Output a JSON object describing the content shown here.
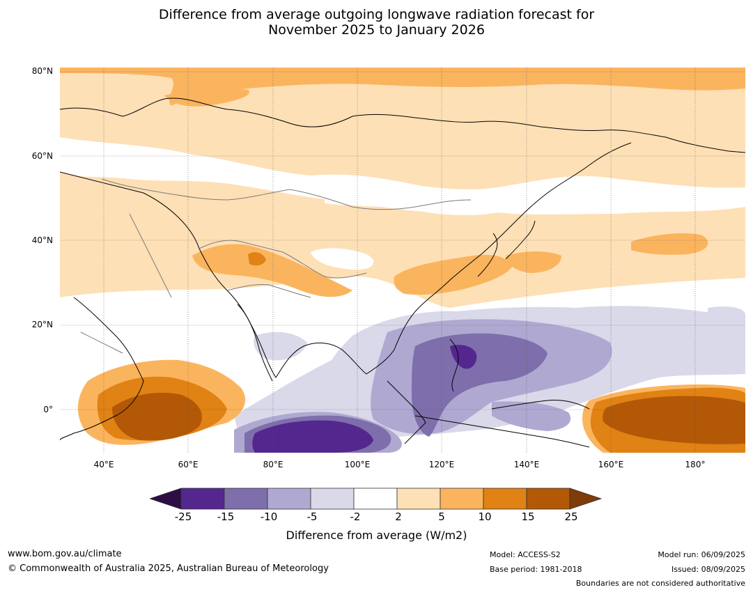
{
  "title": {
    "line1": "Difference from average outgoing longwave radiation forecast for",
    "line2": "November 2025 to January 2026"
  },
  "map": {
    "lat_labels": [
      "80°N",
      "60°N",
      "40°N",
      "20°N",
      "0°"
    ],
    "lon_labels": [
      "40°E",
      "60°E",
      "80°E",
      "100°E",
      "120°E",
      "140°E",
      "160°E",
      "180°"
    ],
    "extent": {
      "lon": [
        30,
        192
      ],
      "lat": [
        -10,
        81
      ]
    }
  },
  "colorbar": {
    "label": "Difference from average (W/m2)",
    "ticks": [
      "-25",
      "-15",
      "-10",
      "-5",
      "-2",
      "2",
      "5",
      "10",
      "15",
      "25"
    ],
    "colors": {
      "below_-25": "#2d0d44",
      "-25_-15": "#54278f",
      "-15_-10": "#7e6fac",
      "-10_-5": "#afa9d2",
      "-5_-2": "#d9d9ea",
      "-2_2": "#ffffff",
      "2_5": "#fee0b6",
      "5_10": "#fbb45e",
      "10_15": "#e08214",
      "15_25": "#b35806",
      "above_25": "#7f3b08"
    }
  },
  "footer": {
    "website": "www.bom.gov.au/climate",
    "copyright": "© Commonwealth of Australia 2025, Australian Bureau of Meteorology",
    "model": "Model: ACCESS-S2",
    "base_period": "Base period: 1981-2018",
    "model_run": "Model run: 06/09/2025",
    "issued": "Issued: 08/09/2025",
    "boundaries": "Boundaries are not considered authoritative"
  }
}
